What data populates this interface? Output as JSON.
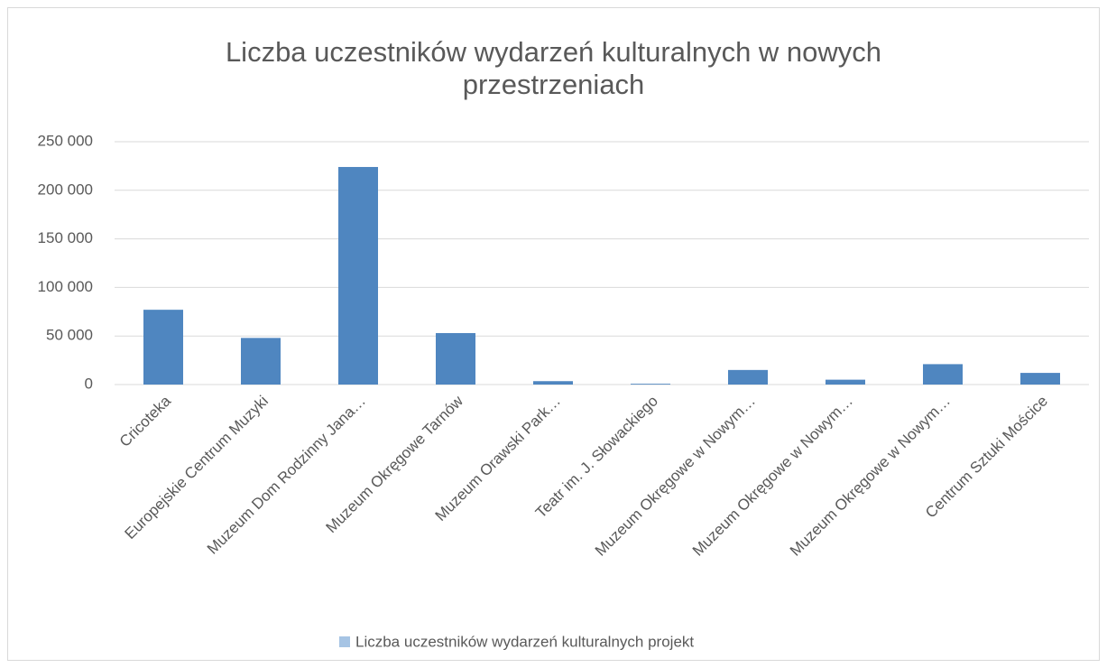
{
  "chart_data": {
    "type": "bar",
    "title": "Liczba uczestników wydarzeń kulturalnych w nowych przestrzeniach",
    "categories": [
      "Cricoteka",
      "Europejskie Centrum Muzyki",
      "Muzeum Dom Rodzinny Jana…",
      "Muzeum Okręgowe Tarnów",
      "Muzeum Orawski Park…",
      "Teatr im. J. Słowackiego",
      "Muzeum Okręgowe w Nowym…",
      "Muzeum Okręgowe w Nowym…",
      "Muzeum Okręgowe w Nowym…",
      "Centrum Sztuki Mościce"
    ],
    "series": [
      {
        "name": "Liczba uczestników wydarzeń kulturalnych projekt",
        "color": "#4f86c0",
        "values": [
          77000,
          48000,
          224000,
          53000,
          3500,
          800,
          15000,
          5000,
          21000,
          12000
        ]
      }
    ],
    "ylim": [
      0,
      250000
    ],
    "yticks": [
      0,
      {
        "value": 50000,
        "label": "50 000"
      },
      {
        "value": 100000,
        "label": "100 000"
      },
      {
        "value": 150000,
        "label": "150 000"
      },
      {
        "value": 200000,
        "label": "200 000"
      },
      {
        "value": 250000,
        "label": "250 000"
      }
    ],
    "grid": true,
    "legend": "bottom"
  }
}
